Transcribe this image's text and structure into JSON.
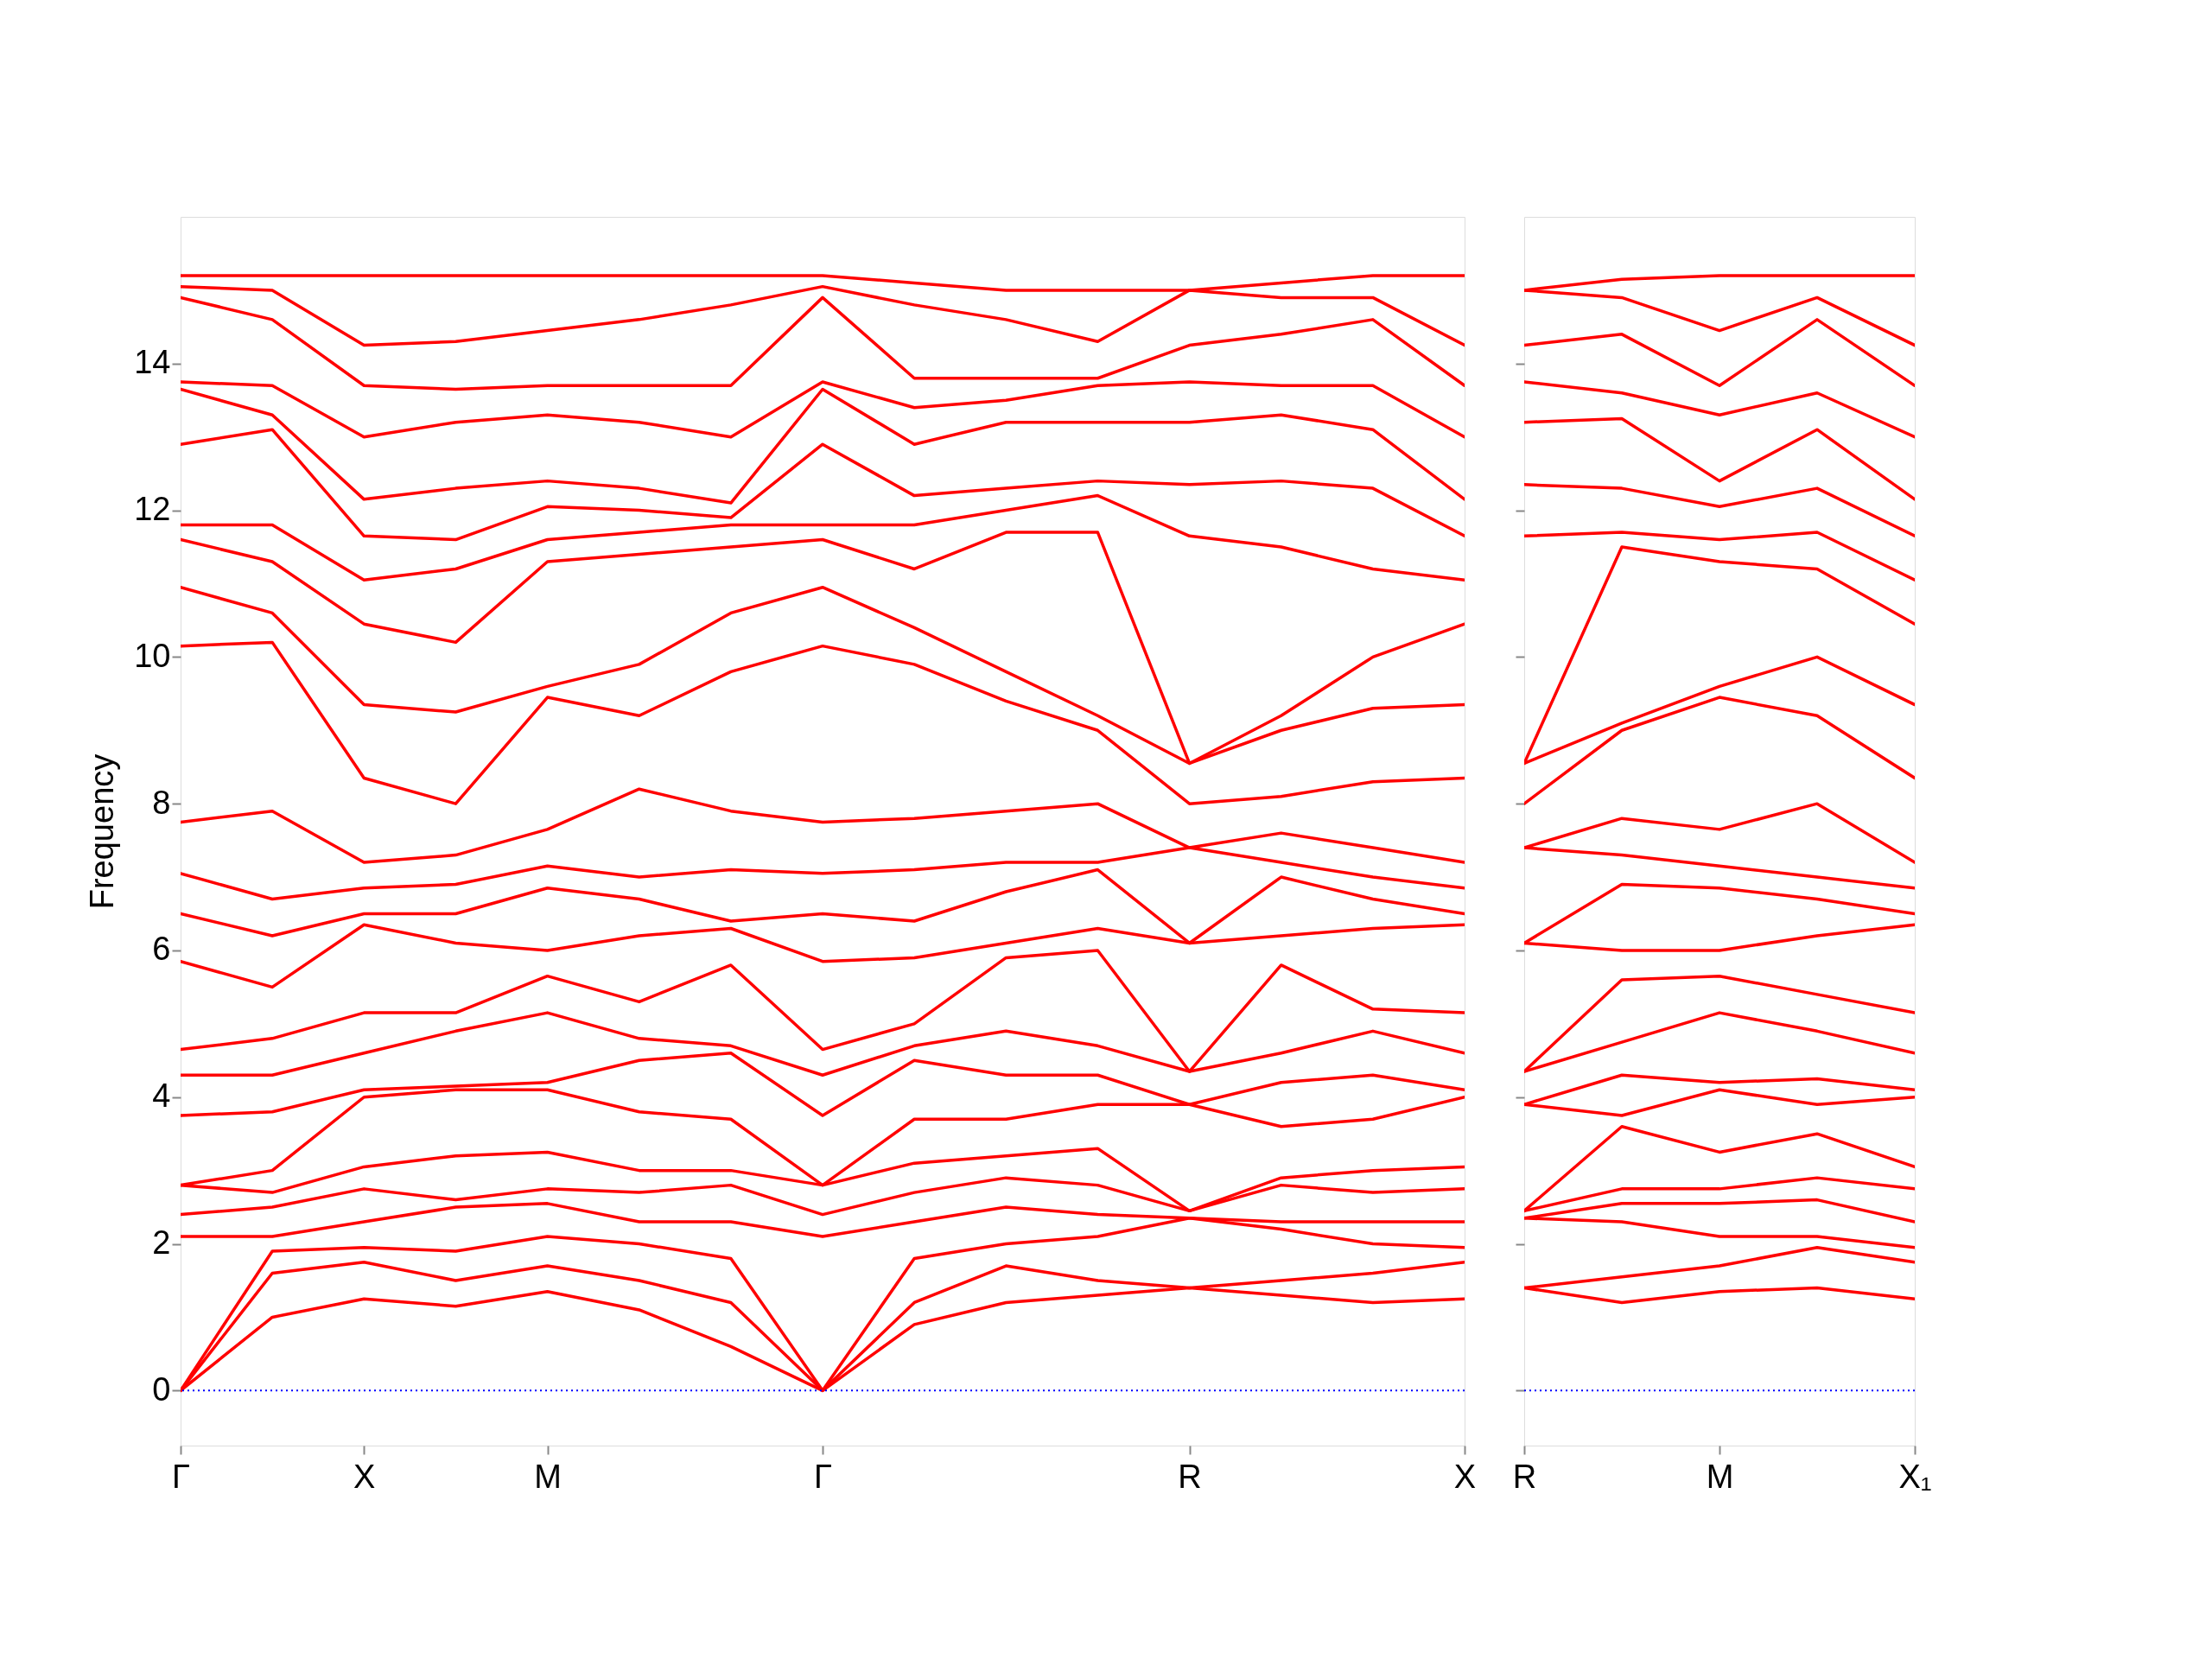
{
  "chart_data": [
    {
      "type": "line",
      "ylabel": "Frequency",
      "grid": false,
      "ylim": [
        -0.75,
        16
      ],
      "yticks": [
        0,
        2,
        4,
        6,
        8,
        10,
        12,
        14
      ],
      "categories": [
        "Γ",
        null,
        "X",
        null,
        "M",
        null,
        null,
        "Γ",
        null,
        null,
        null,
        "R",
        null,
        null,
        "X"
      ],
      "ref_lines": [
        {
          "axis": "y",
          "value": 0,
          "color": "#0000ff",
          "line_style": "dotted"
        }
      ],
      "series": [
        {
          "color": "#ff0000",
          "values": [
            0,
            1.0,
            1.25,
            1.15,
            1.35,
            1.1,
            0.6,
            0,
            0.9,
            1.2,
            1.3,
            1.4,
            1.3,
            1.2,
            1.25
          ]
        },
        {
          "color": "#ff0000",
          "values": [
            0,
            1.6,
            1.75,
            1.5,
            1.7,
            1.5,
            1.2,
            0,
            1.2,
            1.7,
            1.5,
            1.4,
            1.5,
            1.6,
            1.75
          ]
        },
        {
          "color": "#ff0000",
          "values": [
            0,
            1.9,
            1.95,
            1.9,
            2.1,
            2.0,
            1.8,
            0,
            1.8,
            2.0,
            2.1,
            2.35,
            2.2,
            2.0,
            1.95
          ]
        },
        {
          "color": "#ff0000",
          "values": [
            2.1,
            2.1,
            2.3,
            2.5,
            2.55,
            2.3,
            2.3,
            2.1,
            2.3,
            2.5,
            2.4,
            2.35,
            2.3,
            2.3,
            2.3
          ]
        },
        {
          "color": "#ff0000",
          "values": [
            2.4,
            2.5,
            2.75,
            2.6,
            2.75,
            2.7,
            2.8,
            2.4,
            2.7,
            2.9,
            2.8,
            2.45,
            2.8,
            2.7,
            2.75
          ]
        },
        {
          "color": "#ff0000",
          "values": [
            2.8,
            2.7,
            3.05,
            3.2,
            3.25,
            3.0,
            3.0,
            2.8,
            3.1,
            3.2,
            3.3,
            2.45,
            2.9,
            3.0,
            3.05
          ]
        },
        {
          "color": "#ff0000",
          "values": [
            2.8,
            3.0,
            4.0,
            4.1,
            4.1,
            3.8,
            3.7,
            2.8,
            3.7,
            3.7,
            3.9,
            3.9,
            3.6,
            3.7,
            4.0
          ]
        },
        {
          "color": "#ff0000",
          "values": [
            3.75,
            3.8,
            4.1,
            4.15,
            4.2,
            4.5,
            4.6,
            3.75,
            4.5,
            4.3,
            4.3,
            3.9,
            4.2,
            4.3,
            4.1
          ]
        },
        {
          "color": "#ff0000",
          "values": [
            4.3,
            4.3,
            4.6,
            4.9,
            5.15,
            4.8,
            4.7,
            4.3,
            4.7,
            4.9,
            4.7,
            4.35,
            4.6,
            4.9,
            4.6
          ]
        },
        {
          "color": "#ff0000",
          "values": [
            4.65,
            4.8,
            5.15,
            5.15,
            5.65,
            5.3,
            5.8,
            4.65,
            5.0,
            5.9,
            6.0,
            4.35,
            5.8,
            5.2,
            5.15
          ]
        },
        {
          "color": "#ff0000",
          "values": [
            5.85,
            5.5,
            6.35,
            6.1,
            6.0,
            6.2,
            6.3,
            5.85,
            5.9,
            6.1,
            6.3,
            6.1,
            6.2,
            6.3,
            6.35
          ]
        },
        {
          "color": "#ff0000",
          "values": [
            6.5,
            6.2,
            6.5,
            6.5,
            6.85,
            6.7,
            6.4,
            6.5,
            6.4,
            6.8,
            7.1,
            6.1,
            7.0,
            6.7,
            6.5
          ]
        },
        {
          "color": "#ff0000",
          "values": [
            7.05,
            6.7,
            6.85,
            6.9,
            7.15,
            7.0,
            7.1,
            7.05,
            7.1,
            7.2,
            7.2,
            7.4,
            7.2,
            7.0,
            6.85
          ]
        },
        {
          "color": "#ff0000",
          "values": [
            7.75,
            7.9,
            7.2,
            7.3,
            7.65,
            8.2,
            7.9,
            7.75,
            7.8,
            7.9,
            8.0,
            7.4,
            7.6,
            7.4,
            7.2
          ]
        },
        {
          "color": "#ff0000",
          "values": [
            10.15,
            10.2,
            8.35,
            8.0,
            9.45,
            9.2,
            9.8,
            10.15,
            9.9,
            9.4,
            9.0,
            8.0,
            8.1,
            8.3,
            8.35
          ]
        },
        {
          "color": "#ff0000",
          "values": [
            10.95,
            10.6,
            9.35,
            9.25,
            9.6,
            9.9,
            10.6,
            10.95,
            10.4,
            9.8,
            9.2,
            8.55,
            9.0,
            9.3,
            9.35
          ]
        },
        {
          "color": "#ff0000",
          "values": [
            11.6,
            11.3,
            10.45,
            10.2,
            11.3,
            11.4,
            11.5,
            11.6,
            11.2,
            11.7,
            11.7,
            8.55,
            9.2,
            10.0,
            10.45
          ]
        },
        {
          "color": "#ff0000",
          "values": [
            11.8,
            11.8,
            11.05,
            11.2,
            11.6,
            11.7,
            11.8,
            11.8,
            11.8,
            12.0,
            12.2,
            11.65,
            11.5,
            11.2,
            11.05
          ]
        },
        {
          "color": "#ff0000",
          "values": [
            12.9,
            13.1,
            11.65,
            11.6,
            12.05,
            12.0,
            11.9,
            12.9,
            12.2,
            12.3,
            12.4,
            12.35,
            12.4,
            12.3,
            11.65
          ]
        },
        {
          "color": "#ff0000",
          "values": [
            13.65,
            13.3,
            12.15,
            12.3,
            12.4,
            12.3,
            12.1,
            13.65,
            12.9,
            13.2,
            13.2,
            13.2,
            13.3,
            13.1,
            12.15
          ]
        },
        {
          "color": "#ff0000",
          "values": [
            13.75,
            13.7,
            13.0,
            13.2,
            13.3,
            13.2,
            13.0,
            13.75,
            13.4,
            13.5,
            13.7,
            13.75,
            13.7,
            13.7,
            13.0
          ]
        },
        {
          "color": "#ff0000",
          "values": [
            14.9,
            14.6,
            13.7,
            13.65,
            13.7,
            13.7,
            13.7,
            14.9,
            13.8,
            13.8,
            13.8,
            14.25,
            14.4,
            14.6,
            13.7
          ]
        },
        {
          "color": "#ff0000",
          "values": [
            15.05,
            15.0,
            14.25,
            14.3,
            14.45,
            14.6,
            14.8,
            15.05,
            14.8,
            14.6,
            14.3,
            15.0,
            14.9,
            14.9,
            14.25
          ]
        },
        {
          "color": "#ff0000",
          "values": [
            15.2,
            15.2,
            15.2,
            15.2,
            15.2,
            15.2,
            15.2,
            15.2,
            15.1,
            15.0,
            15.0,
            15.0,
            15.1,
            15.2,
            15.2
          ]
        }
      ]
    },
    {
      "type": "line",
      "grid": false,
      "tick_labels": "x",
      "ylim": [
        -0.75,
        16
      ],
      "yticks": [
        0,
        2,
        4,
        6,
        8,
        10,
        12,
        14
      ],
      "categories": [
        "R",
        null,
        "M",
        null,
        "X₁"
      ],
      "ref_lines": [
        {
          "axis": "y",
          "value": 0,
          "color": "#0000ff",
          "line_style": "dotted"
        }
      ],
      "series": [
        {
          "color": "#ff0000",
          "values": [
            1.4,
            1.2,
            1.35,
            1.4,
            1.25
          ]
        },
        {
          "color": "#ff0000",
          "values": [
            1.4,
            1.55,
            1.7,
            1.95,
            1.75
          ]
        },
        {
          "color": "#ff0000",
          "values": [
            2.35,
            2.3,
            2.1,
            2.1,
            1.95
          ]
        },
        {
          "color": "#ff0000",
          "values": [
            2.35,
            2.55,
            2.55,
            2.6,
            2.3
          ]
        },
        {
          "color": "#ff0000",
          "values": [
            2.45,
            2.75,
            2.75,
            2.9,
            2.75
          ]
        },
        {
          "color": "#ff0000",
          "values": [
            2.45,
            3.6,
            3.25,
            3.5,
            3.05
          ]
        },
        {
          "color": "#ff0000",
          "values": [
            3.9,
            3.75,
            4.1,
            3.9,
            4.0
          ]
        },
        {
          "color": "#ff0000",
          "values": [
            3.9,
            4.3,
            4.2,
            4.25,
            4.1
          ]
        },
        {
          "color": "#ff0000",
          "values": [
            4.35,
            4.75,
            5.15,
            4.9,
            4.6
          ]
        },
        {
          "color": "#ff0000",
          "values": [
            4.35,
            5.6,
            5.65,
            5.4,
            5.15
          ]
        },
        {
          "color": "#ff0000",
          "values": [
            6.1,
            6.0,
            6.0,
            6.2,
            6.35
          ]
        },
        {
          "color": "#ff0000",
          "values": [
            6.1,
            6.9,
            6.85,
            6.7,
            6.5
          ]
        },
        {
          "color": "#ff0000",
          "values": [
            7.4,
            7.3,
            7.15,
            7.0,
            6.85
          ]
        },
        {
          "color": "#ff0000",
          "values": [
            7.4,
            7.8,
            7.65,
            8.0,
            7.2
          ]
        },
        {
          "color": "#ff0000",
          "values": [
            8.0,
            9.0,
            9.45,
            9.2,
            8.35
          ]
        },
        {
          "color": "#ff0000",
          "values": [
            8.55,
            9.1,
            9.6,
            10.0,
            9.35
          ]
        },
        {
          "color": "#ff0000",
          "values": [
            8.55,
            11.5,
            11.3,
            11.2,
            10.45
          ]
        },
        {
          "color": "#ff0000",
          "values": [
            11.65,
            11.7,
            11.6,
            11.7,
            11.05
          ]
        },
        {
          "color": "#ff0000",
          "values": [
            12.35,
            12.3,
            12.05,
            12.3,
            11.65
          ]
        },
        {
          "color": "#ff0000",
          "values": [
            13.2,
            13.25,
            12.4,
            13.1,
            12.15
          ]
        },
        {
          "color": "#ff0000",
          "values": [
            13.75,
            13.6,
            13.3,
            13.6,
            13.0
          ]
        },
        {
          "color": "#ff0000",
          "values": [
            14.25,
            14.4,
            13.7,
            14.6,
            13.7
          ]
        },
        {
          "color": "#ff0000",
          "values": [
            15.0,
            14.9,
            14.45,
            14.9,
            14.25
          ]
        },
        {
          "color": "#ff0000",
          "values": [
            15.0,
            15.15,
            15.2,
            15.2,
            15.2
          ]
        }
      ]
    }
  ]
}
